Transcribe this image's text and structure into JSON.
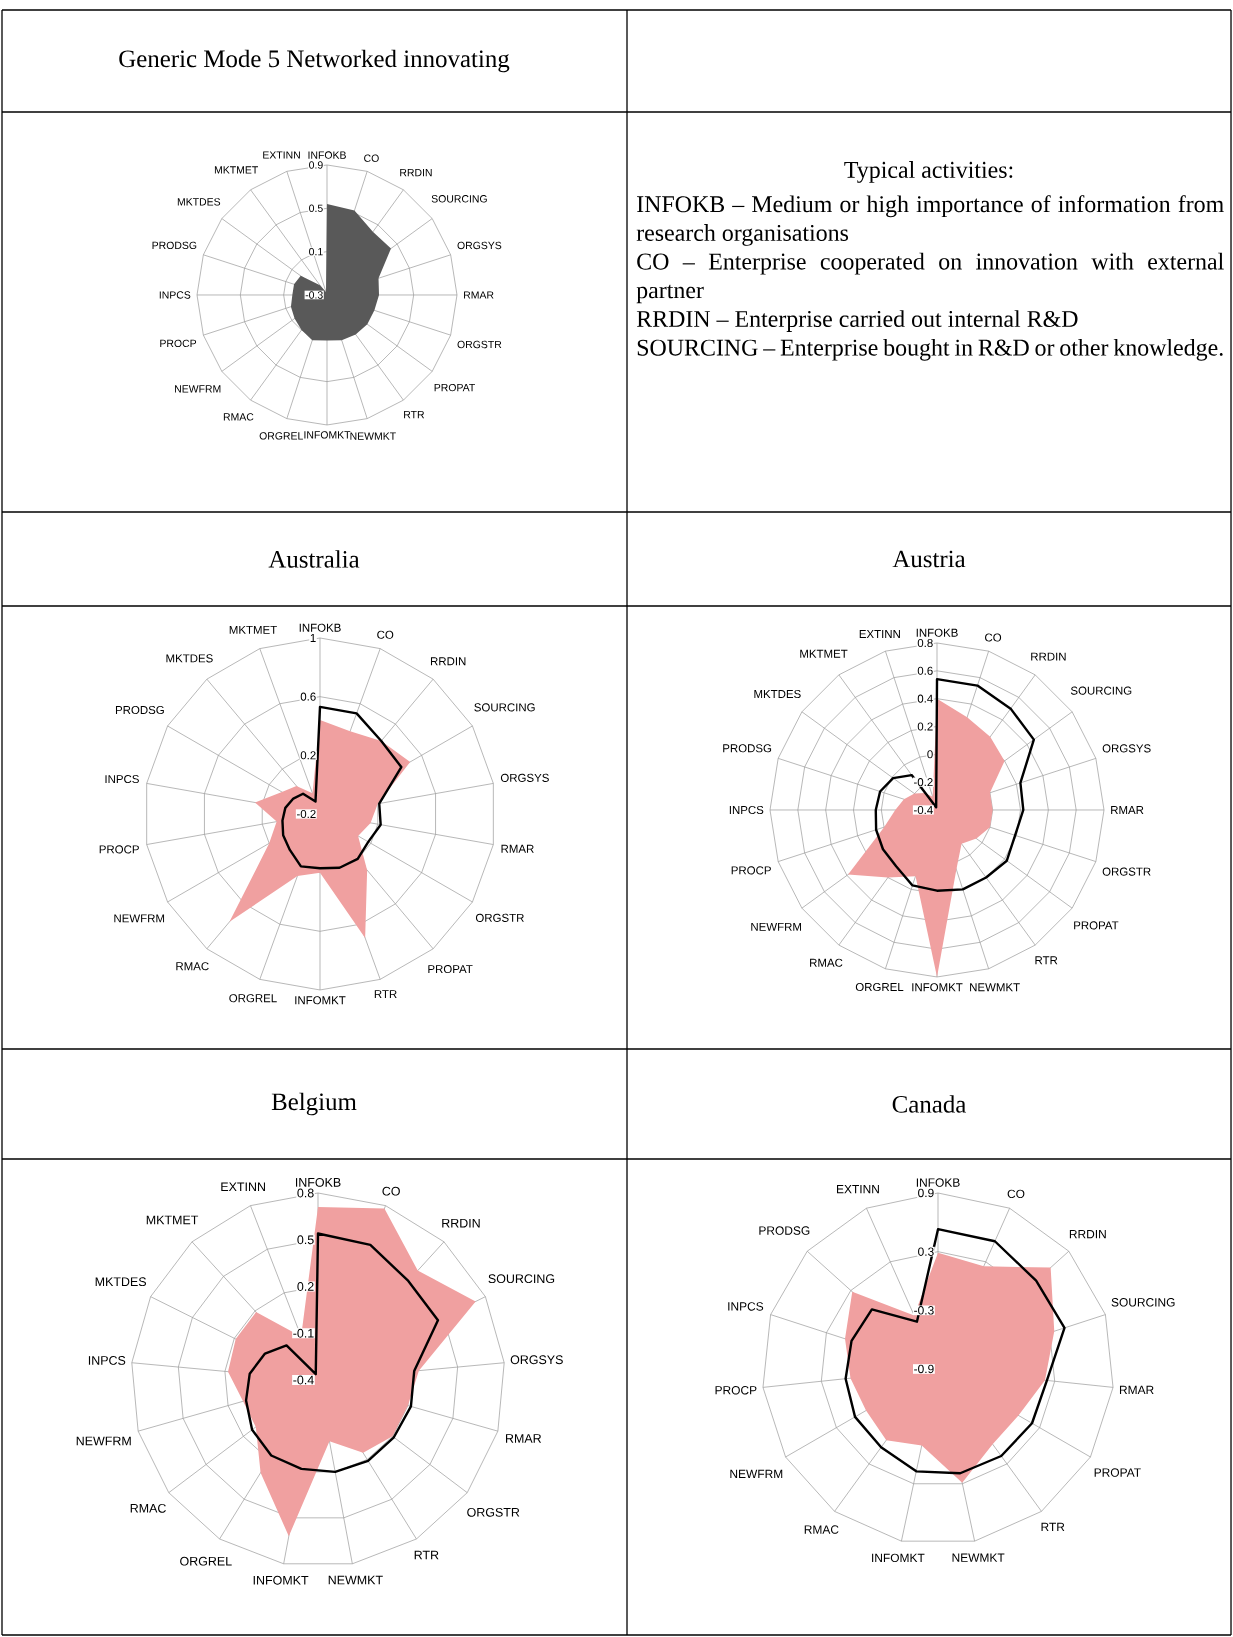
{
  "chart_data": [
    {
      "type": "radar",
      "title": "Generic Mode 5 Networked innovating",
      "categories": [
        "INFOKB",
        "CO",
        "RRDIN",
        "SOURCING",
        "ORGSYS",
        "RMAR",
        "ORGSTR",
        "PROPAT",
        "RTR",
        "NEWMKT",
        "INFOMKT",
        "ORGREL",
        "RMAC",
        "NEWFRM",
        "PROCP",
        "INPCS",
        "PRODSG",
        "MKTDES",
        "MKTMET",
        "EXTINN"
      ],
      "series": [
        {
          "type": "area",
          "color": "#595959",
          "values": [
            0.54,
            0.52,
            0.42,
            0.43,
            0.2,
            0.18,
            0.16,
            0.16,
            0.15,
            0.14,
            0.12,
            0.14,
            0.1,
            0.07,
            0.05,
            0.02,
            0.02,
            0.0,
            -0.19,
            -0.27
          ]
        }
      ],
      "ylim": [
        -0.3,
        0.9
      ],
      "yticks": [
        -0.3,
        0.1,
        0.5,
        0.9
      ],
      "grid": true
    },
    {
      "type": "other",
      "title": "Typical activities:",
      "annotations": [
        "INFOKB – Medium or high importance of information from research organisations",
        "CO – Enterprise cooperated on innovation with external partner",
        "RRDIN – Enterprise carried out internal R&D",
        "SOURCING – Enterprise bought in R&D or other knowledge."
      ]
    },
    {
      "type": "radar",
      "title": "Australia",
      "categories": [
        "INFOKB",
        "CO",
        "RRDIN",
        "SOURCING",
        "ORGSYS",
        "RMAR",
        "ORGSTR",
        "PROPAT",
        "RTR",
        "INFOMKT",
        "ORGREL",
        "RMAC",
        "NEWFRM",
        "PROCP",
        "INPCS",
        "PRODSG",
        "MKTDES",
        "MKTMET"
      ],
      "series": [
        {
          "type": "area",
          "color": "#f0a0a0",
          "values": [
            0.44,
            0.4,
            0.45,
            0.51,
            0.2,
            0.15,
            0.1,
            0.3,
            0.7,
            0.2,
            0.25,
            0.76,
            0.2,
            0.1,
            0.25,
            0.1,
            0.05,
            -0.05
          ]
        },
        {
          "color": "#000000",
          "values": [
            0.53,
            0.53,
            0.45,
            0.44,
            0.21,
            0.22,
            0.18,
            0.2,
            0.19,
            0.17,
            0.18,
            0.12,
            0.09,
            0.06,
            0.04,
            0.01,
            -0.02,
            -0.11
          ]
        }
      ],
      "ylim": [
        -0.2,
        1
      ],
      "yticks": [
        -0.2,
        0.2,
        0.6,
        1
      ],
      "grid": true
    },
    {
      "type": "radar",
      "title": "Austria",
      "categories": [
        "INFOKB",
        "CO",
        "RRDIN",
        "SOURCING",
        "ORGSYS",
        "RMAR",
        "ORGSTR",
        "PROPAT",
        "RTR",
        "NEWMKT",
        "INFOMKT",
        "ORGREL",
        "RMAC",
        "NEWFRM",
        "PROCP",
        "INPCS",
        "PRODSG",
        "MKTDES",
        "MKTMET",
        "EXTINN"
      ],
      "series": [
        {
          "type": "area",
          "color": "#f0a0a0",
          "values": [
            0.4,
            0.3,
            0.25,
            0.2,
            0.0,
            0.0,
            0.0,
            -0.05,
            -0.1,
            0.05,
            0.8,
            0.1,
            0.2,
            0.39,
            0.0,
            -0.1,
            -0.15,
            -0.2,
            -0.25,
            -0.3
          ]
        },
        {
          "color": "#000000",
          "values": [
            0.54,
            0.54,
            0.5,
            0.46,
            0.23,
            0.22,
            0.19,
            0.22,
            0.2,
            0.2,
            0.18,
            0.17,
            0.1,
            0.08,
            0.06,
            0.04,
            0.03,
            -0.01,
            -0.09,
            -0.38
          ]
        }
      ],
      "ylim": [
        -0.4,
        0.8
      ],
      "yticks": [
        -0.4,
        -0.2,
        0,
        0.2,
        0.4,
        0.6,
        0.8
      ],
      "grid": true
    },
    {
      "type": "radar",
      "title": "Belgium",
      "categories": [
        "INFOKB",
        "CO",
        "RRDIN",
        "SOURCING",
        "ORGSYS",
        "RMAR",
        "ORGSTR",
        "RTR",
        "NEWMKT",
        "INFOMKT",
        "ORGREL",
        "RMAC",
        "NEWFRM",
        "INPCS",
        "MKTDES",
        "MKTMET",
        "EXTINN"
      ],
      "series": [
        {
          "type": "area",
          "color": "#f0a0a0",
          "values": [
            0.71,
            0.78,
            0.55,
            0.73,
            0.25,
            0.2,
            0.2,
            0.15,
            0.0,
            0.62,
            0.3,
            0.1,
            0.1,
            0.18,
            0.19,
            0.19,
            -0.1
          ]
        },
        {
          "color": "#000000",
          "values": [
            0.54,
            0.53,
            0.46,
            0.46,
            0.22,
            0.22,
            0.21,
            0.21,
            0.2,
            0.18,
            0.17,
            0.13,
            0.08,
            0.04,
            -0.02,
            -0.1,
            -0.36
          ]
        }
      ],
      "ylim": [
        -0.4,
        0.8
      ],
      "yticks": [
        -0.4,
        -0.1,
        0.2,
        0.5,
        0.8
      ],
      "grid": true
    },
    {
      "type": "radar",
      "title": "Canada",
      "categories": [
        "INFOKB",
        "CO",
        "RRDIN",
        "SOURCING",
        "RMAR",
        "PROPAT",
        "RTR",
        "NEWMKT",
        "INFOMKT",
        "RMAC",
        "NEWFRM",
        "PROCP",
        "INPCS",
        "PRODSG",
        "EXTINN"
      ],
      "series": [
        {
          "type": "area",
          "color": "#f0a0a0",
          "values": [
            0.29,
            0.25,
            0.65,
            0.35,
            0.2,
            0.05,
            0.05,
            0.29,
            -0.1,
            0.0,
            -0.05,
            0.0,
            0.1,
            0.28,
            -0.3
          ]
        },
        {
          "color": "#000000",
          "values": [
            0.53,
            0.53,
            0.45,
            0.46,
            0.22,
            0.21,
            0.2,
            0.19,
            0.17,
            0.09,
            0.08,
            0.05,
            0.03,
            0.01,
            -0.37
          ]
        }
      ],
      "ylim": [
        -0.9,
        0.9
      ],
      "yticks": [
        -0.9,
        -0.3,
        0.3,
        0.9
      ],
      "grid": true
    }
  ]
}
